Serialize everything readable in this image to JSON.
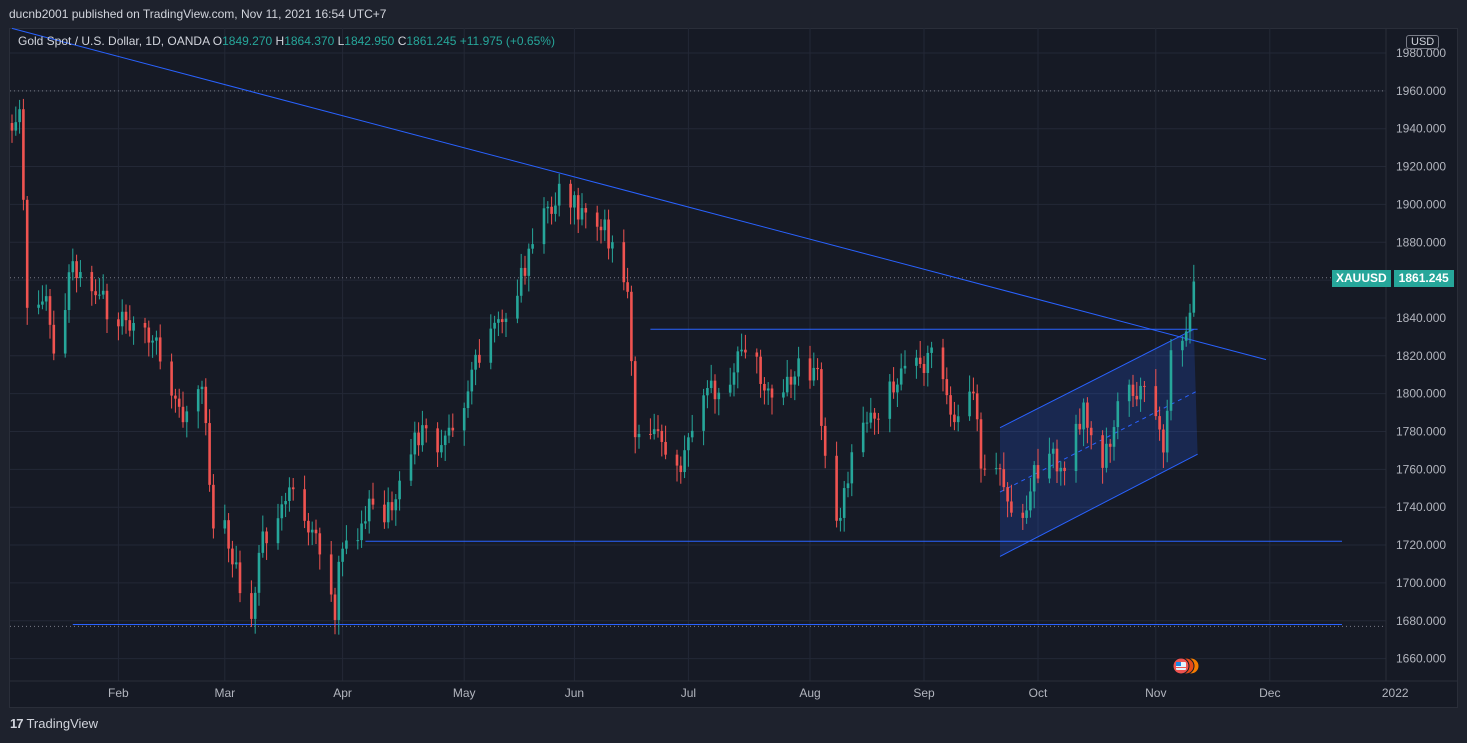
{
  "header": {
    "published_text": "ducnb2001 published on TradingView.com, Nov 11, 2021 16:54 UTC+7"
  },
  "legend": {
    "symbol_text": "Gold Spot / U.S. Dollar, 1D, OANDA",
    "open_label": "O",
    "open_value": "1849.270",
    "high_label": "H",
    "high_value": "1864.370",
    "low_label": "L",
    "low_value": "1842.950",
    "close_label": "C",
    "close_value": "1861.245",
    "change_value": "+11.975 (+0.65%)"
  },
  "price_axis": {
    "currency": "USD",
    "ticks": [
      "1980.000",
      "1960.000",
      "1940.000",
      "1920.000",
      "1900.000",
      "1880.000",
      "1860.000",
      "1840.000",
      "1820.000",
      "1800.000",
      "1780.000",
      "1760.000",
      "1740.000",
      "1720.000",
      "1700.000",
      "1680.000",
      "1660.000"
    ]
  },
  "time_axis": {
    "ticks": [
      "Feb",
      "Mar",
      "Apr",
      "May",
      "Jun",
      "Jul",
      "Aug",
      "Sep",
      "Oct",
      "Nov",
      "Dec",
      "2022"
    ]
  },
  "last_price": {
    "symbol": "XAUUSD",
    "value": "1861.245"
  },
  "footer": {
    "brand": "TradingView",
    "logo_glyph": "17"
  },
  "colors": {
    "up": "#26a69a",
    "down": "#ef5350",
    "drawing": "#2962ff",
    "background": "#161a25",
    "grid": "#232836"
  },
  "chart_data": {
    "type": "candlestick",
    "title": "Gold Spot / U.S. Dollar, 1D, OANDA",
    "ylim": [
      1650,
      1990
    ],
    "x_range": [
      "2021-01-04",
      "2021-12-31"
    ],
    "xticks": [
      {
        "label": "Feb",
        "date": "2021-02-01"
      },
      {
        "label": "Mar",
        "date": "2021-03-01"
      },
      {
        "label": "Apr",
        "date": "2021-04-01"
      },
      {
        "label": "May",
        "date": "2021-05-03"
      },
      {
        "label": "Jun",
        "date": "2021-06-01"
      },
      {
        "label": "Jul",
        "date": "2021-07-01"
      },
      {
        "label": "Aug",
        "date": "2021-08-02"
      },
      {
        "label": "Sep",
        "date": "2021-09-01"
      },
      {
        "label": "Oct",
        "date": "2021-10-01"
      },
      {
        "label": "Nov",
        "date": "2021-11-01"
      },
      {
        "label": "Dec",
        "date": "2021-12-01"
      },
      {
        "label": "2022",
        "date": "2022-01-03"
      }
    ],
    "yticks": [
      1980,
      1960,
      1940,
      1920,
      1900,
      1880,
      1860,
      1840,
      1820,
      1800,
      1780,
      1760,
      1740,
      1720,
      1700,
      1680,
      1660
    ],
    "dotted_levels": [
      1960,
      1861.245,
      1677
    ],
    "close_path": [
      [
        "2021-01-04",
        1944
      ],
      [
        "2021-01-06",
        1950
      ],
      [
        "2021-01-08",
        1849
      ],
      [
        "2021-01-12",
        1855
      ],
      [
        "2021-01-15",
        1828
      ],
      [
        "2021-01-20",
        1866
      ],
      [
        "2021-01-25",
        1856
      ],
      [
        "2021-01-29",
        1846
      ],
      [
        "2021-02-03",
        1834
      ],
      [
        "2021-02-08",
        1832
      ],
      [
        "2021-02-11",
        1826
      ],
      [
        "2021-02-16",
        1795
      ],
      [
        "2021-02-19",
        1784
      ],
      [
        "2021-02-23",
        1806
      ],
      [
        "2021-02-26",
        1734
      ],
      [
        "2021-03-02",
        1725
      ],
      [
        "2021-03-05",
        1699
      ],
      [
        "2021-03-08",
        1683
      ],
      [
        "2021-03-11",
        1725
      ],
      [
        "2021-03-15",
        1732
      ],
      [
        "2021-03-18",
        1745
      ],
      [
        "2021-03-22",
        1737
      ],
      [
        "2021-03-25",
        1726
      ],
      [
        "2021-03-30",
        1684
      ],
      [
        "2021-03-31",
        1708
      ],
      [
        "2021-04-05",
        1728
      ],
      [
        "2021-04-09",
        1745
      ],
      [
        "2021-04-14",
        1735
      ],
      [
        "2021-04-20",
        1779
      ],
      [
        "2021-04-23",
        1777
      ],
      [
        "2021-04-28",
        1773
      ],
      [
        "2021-05-03",
        1792
      ],
      [
        "2021-05-06",
        1815
      ],
      [
        "2021-05-10",
        1836
      ],
      [
        "2021-05-14",
        1843
      ],
      [
        "2021-05-19",
        1868
      ],
      [
        "2021-05-25",
        1898
      ],
      [
        "2021-05-28",
        1905
      ],
      [
        "2021-06-01",
        1903
      ],
      [
        "2021-06-04",
        1891
      ],
      [
        "2021-06-08",
        1893
      ],
      [
        "2021-06-11",
        1877
      ],
      [
        "2021-06-15",
        1859
      ],
      [
        "2021-06-17",
        1773
      ],
      [
        "2021-06-21",
        1782
      ],
      [
        "2021-06-24",
        1775
      ],
      [
        "2021-06-29",
        1761
      ],
      [
        "2021-07-02",
        1787
      ],
      [
        "2021-07-07",
        1803
      ],
      [
        "2021-07-12",
        1806
      ],
      [
        "2021-07-15",
        1828
      ],
      [
        "2021-07-20",
        1810
      ],
      [
        "2021-07-23",
        1802
      ],
      [
        "2021-07-28",
        1806
      ],
      [
        "2021-07-30",
        1813
      ],
      [
        "2021-08-04",
        1810
      ],
      [
        "2021-08-06",
        1763
      ],
      [
        "2021-08-09",
        1727
      ],
      [
        "2021-08-11",
        1752
      ],
      [
        "2021-08-16",
        1788
      ],
      [
        "2021-08-19",
        1782
      ],
      [
        "2021-08-24",
        1804
      ],
      [
        "2021-08-27",
        1817
      ],
      [
        "2021-09-01",
        1813
      ],
      [
        "2021-09-03",
        1828
      ],
      [
        "2021-09-07",
        1795
      ],
      [
        "2021-09-10",
        1788
      ],
      [
        "2021-09-14",
        1805
      ],
      [
        "2021-09-16",
        1754
      ],
      [
        "2021-09-20",
        1764
      ],
      [
        "2021-09-23",
        1743
      ],
      [
        "2021-09-28",
        1733
      ],
      [
        "2021-09-30",
        1756
      ],
      [
        "2021-10-04",
        1769
      ],
      [
        "2021-10-08",
        1757
      ],
      [
        "2021-10-13",
        1793
      ],
      [
        "2021-10-18",
        1765
      ],
      [
        "2021-10-21",
        1784
      ],
      [
        "2021-10-25",
        1807
      ],
      [
        "2021-10-28",
        1799
      ],
      [
        "2021-11-01",
        1793
      ],
      [
        "2021-11-03",
        1769
      ],
      [
        "2021-11-05",
        1818
      ],
      [
        "2021-11-08",
        1824
      ],
      [
        "2021-11-09",
        1832
      ],
      [
        "2021-11-10",
        1849
      ],
      [
        "2021-11-11",
        1861.245
      ]
    ],
    "drawings": [
      {
        "type": "trendline",
        "from": [
          "2021-01-04",
          1993
        ],
        "to": [
          "2021-11-30",
          1818
        ]
      },
      {
        "type": "hline",
        "from": [
          "2021-06-21",
          1834
        ],
        "to": [
          "2021-11-12",
          1834
        ]
      },
      {
        "type": "hline",
        "from": [
          "2021-04-07",
          1722
        ],
        "to": [
          "2021-12-20",
          1722
        ]
      },
      {
        "type": "hline",
        "from": [
          "2021-01-20",
          1678
        ],
        "to": [
          "2021-12-20",
          1678
        ]
      },
      {
        "type": "parallel_channel",
        "upper": [
          [
            "2021-09-21",
            1782
          ],
          [
            "2021-11-11",
            1834
          ]
        ],
        "lower": [
          [
            "2021-09-21",
            1714
          ],
          [
            "2021-11-12",
            1768
          ]
        ]
      }
    ]
  }
}
